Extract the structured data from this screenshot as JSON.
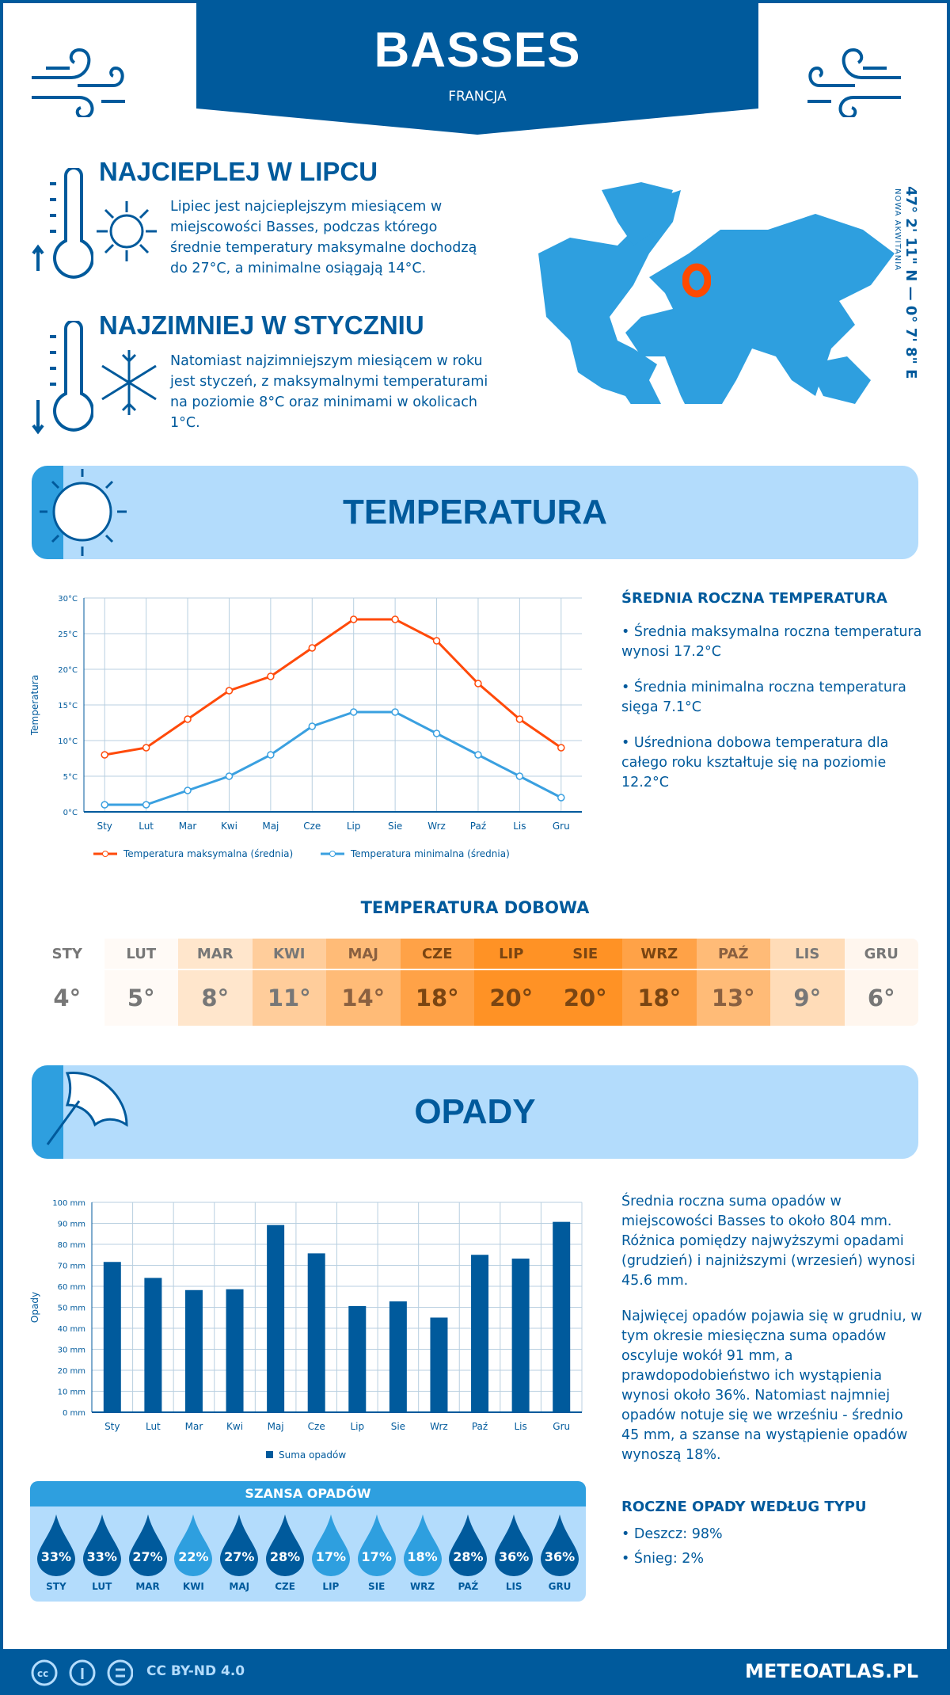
{
  "header": {
    "title": "BASSES",
    "country": "FRANCJA"
  },
  "warm": {
    "title": "NAJCIEPLEJ W LIPCU",
    "text": "Lipiec jest najcieplejszym miesiącem w miejscowości Basses, podczas którego średnie temperatury maksymalne dochodzą do 27°C, a minimalne osiągają 14°C."
  },
  "cold": {
    "title": "NAJZIMNIEJ W STYCZNIU",
    "text": "Natomiast najzimniejszym miesiącem w roku jest styczeń, z maksymalnymi temperaturami na poziomie 8°C oraz minimami w okolicach 1°C."
  },
  "map": {
    "coords": "47° 2' 11\" N — 0° 7' 8\" E",
    "region": "NOWA AKWITANIA",
    "marker_color": "#ff4a00",
    "land_color": "#2e9fdf"
  },
  "temp_section": {
    "title": "TEMPERATURA"
  },
  "temp_summary": {
    "title": "ŚREDNIA ROCZNA TEMPERATURA",
    "items": [
      "• Średnia maksymalna roczna temperatura wynosi 17.2°C",
      "• Średnia minimalna roczna temperatura sięga 7.1°C",
      "• Uśredniona dobowa temperatura dla całego roku kształtuje się na poziomie 12.2°C"
    ]
  },
  "daily": {
    "title": "TEMPERATURA DOBOWA",
    "months": [
      "STY",
      "LUT",
      "MAR",
      "KWI",
      "MAJ",
      "CZE",
      "LIP",
      "SIE",
      "WRZ",
      "PAŹ",
      "LIS",
      "GRU"
    ],
    "values": [
      "4°",
      "5°",
      "8°",
      "11°",
      "14°",
      "18°",
      "20°",
      "20°",
      "18°",
      "13°",
      "9°",
      "6°"
    ],
    "colors": [
      "#ffffff",
      "#fffaf6",
      "#ffe6cc",
      "#ffcd9b",
      "#ffbb77",
      "#ffa247",
      "#ff9225",
      "#ff9225",
      "#ffa247",
      "#ffbb77",
      "#ffdcb8",
      "#fff6ee"
    ]
  },
  "precip_section": {
    "title": "OPADY"
  },
  "precip_summary": {
    "p1": "Średnia roczna suma opadów w miejscowości Basses to około 804 mm. Różnica pomiędzy najwyższymi opadami (grudzień) i najniższymi (wrzesień) wynosi 45.6 mm.",
    "p2": "Najwięcej opadów pojawia się w grudniu, w tym okresie miesięczna suma opadów oscyluje wokół 91 mm, a prawdopodobieństwo ich wystąpienia wynosi około 36%. Natomiast najmniej opadów notuje się we wrześniu - średnio 45 mm, a szanse na wystąpienie opadów wynoszą 18%."
  },
  "chance": {
    "title": "SZANSA OPADÓW",
    "months": [
      "STY",
      "LUT",
      "MAR",
      "KWI",
      "MAJ",
      "CZE",
      "LIP",
      "SIE",
      "WRZ",
      "PAŹ",
      "LIS",
      "GRU"
    ],
    "values": [
      "33%",
      "33%",
      "27%",
      "22%",
      "27%",
      "28%",
      "17%",
      "17%",
      "18%",
      "28%",
      "36%",
      "36%"
    ],
    "colors": {
      "high": "#005a9c",
      "low": "#2e9fdf"
    }
  },
  "precip_type": {
    "title": "ROCZNE OPADY WEDŁUG TYPU",
    "items": [
      "• Deszcz: 98%",
      "• Śnieg: 2%"
    ]
  },
  "footer": {
    "license": "CC BY-ND 4.0",
    "site": "METEOATLAS.PL"
  },
  "chart_data": [
    {
      "type": "line",
      "categories": [
        "Sty",
        "Lut",
        "Mar",
        "Kwi",
        "Maj",
        "Cze",
        "Lip",
        "Sie",
        "Wrz",
        "Paź",
        "Lis",
        "Gru"
      ],
      "ylabel": "Temperatura",
      "ylim": [
        0,
        30
      ],
      "yticks": [
        "0°C",
        "5°C",
        "10°C",
        "15°C",
        "20°C",
        "25°C",
        "30°C"
      ],
      "grid": true,
      "legend": "bottom",
      "series": [
        {
          "name": "Temperatura maksymalna (średnia)",
          "color": "#ff4a0a",
          "values": [
            8,
            9,
            13,
            17,
            19,
            23,
            27,
            27,
            24,
            18,
            13,
            9
          ]
        },
        {
          "name": "Temperatura minimalna (średnia)",
          "color": "#3aa0e0",
          "values": [
            1,
            1,
            3,
            5,
            8,
            12,
            14,
            14,
            11,
            8,
            5,
            2
          ]
        }
      ]
    },
    {
      "type": "bar",
      "categories": [
        "Sty",
        "Lut",
        "Mar",
        "Kwi",
        "Maj",
        "Cze",
        "Lip",
        "Sie",
        "Wrz",
        "Paź",
        "Lis",
        "Gru"
      ],
      "ylabel": "Opady",
      "ylim": [
        0,
        100
      ],
      "yticks": [
        "0 mm",
        "10 mm",
        "20 mm",
        "30 mm",
        "40 mm",
        "50 mm",
        "60 mm",
        "70 mm",
        "80 mm",
        "90 mm",
        "100 mm"
      ],
      "grid": true,
      "legend": "bottom",
      "series": [
        {
          "name": "Suma opadów",
          "color": "#005a9c",
          "values": [
            71.6,
            64,
            58.2,
            58.6,
            89.2,
            75.7,
            50.6,
            52.8,
            45.1,
            75,
            73.2,
            90.7
          ]
        }
      ]
    }
  ]
}
